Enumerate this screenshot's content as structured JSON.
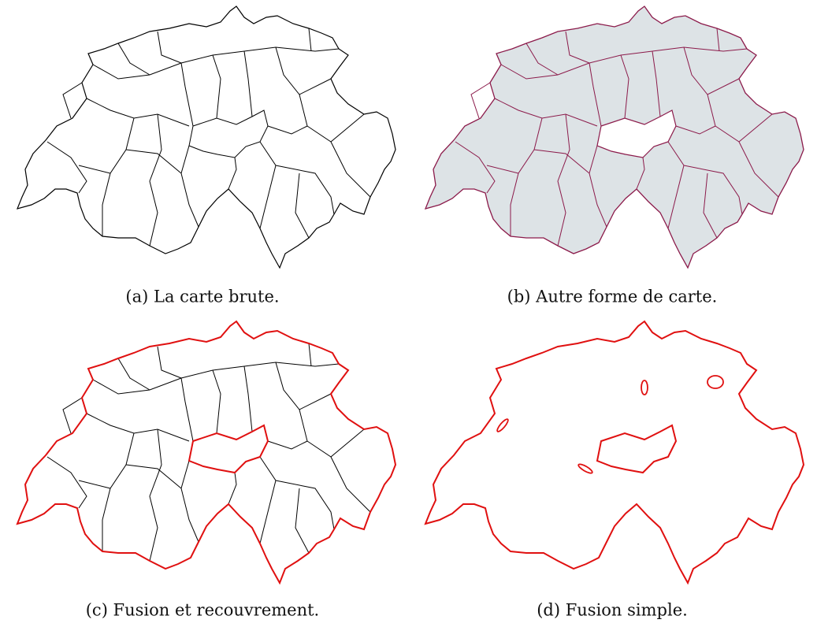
{
  "panels": [
    {
      "caption": "(a) La carte brute."
    },
    {
      "caption": "(b) Autre forme de carte."
    },
    {
      "caption": "(c) Fusion et recouvrement."
    },
    {
      "caption": "(d) Fusion simple."
    }
  ]
}
